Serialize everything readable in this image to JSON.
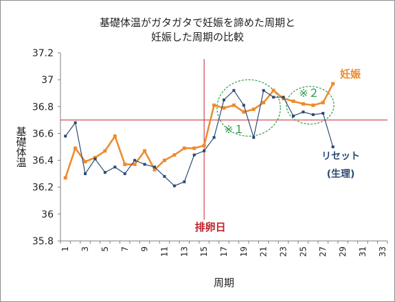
{
  "chart_data": {
    "type": "line",
    "title_line1": "基礎体温がガタガタで妊娠を諦めた周期と",
    "title_line2": "妊娠した周期の比較",
    "xlabel": "周期",
    "ylabel": "基礎体温",
    "xlim": [
      1,
      33
    ],
    "ylim": [
      35.8,
      37.2
    ],
    "y_ticks": [
      "35.8",
      "36",
      "36.2",
      "36.4",
      "36.6",
      "36.8",
      "37",
      "37.2"
    ],
    "x_ticks": [
      "1",
      "3",
      "5",
      "7",
      "9",
      "11",
      "13",
      "15",
      "17",
      "19",
      "21",
      "23",
      "25",
      "27",
      "29",
      "31",
      "33"
    ],
    "grid": false,
    "series": [
      {
        "name": "妊娠",
        "label_lines": [
          "妊娠"
        ],
        "color": "#ed8b2f",
        "x": [
          1,
          2,
          3,
          4,
          5,
          6,
          7,
          8,
          9,
          10,
          11,
          12,
          13,
          14,
          15,
          16,
          17,
          18,
          19,
          20,
          21,
          22,
          23,
          24,
          25,
          26,
          27,
          28
        ],
        "y": [
          36.27,
          36.49,
          36.39,
          36.42,
          36.47,
          36.58,
          36.37,
          36.37,
          36.47,
          36.33,
          36.4,
          36.44,
          36.49,
          36.49,
          36.51,
          36.81,
          36.79,
          36.81,
          36.76,
          36.78,
          36.83,
          36.92,
          36.86,
          36.84,
          36.82,
          36.81,
          36.83,
          36.97
        ]
      },
      {
        "name": "リセット(生理)",
        "label_lines": [
          "リセット",
          "(生理)"
        ],
        "color": "#2c4a73",
        "x": [
          1,
          2,
          3,
          4,
          5,
          6,
          7,
          8,
          9,
          10,
          11,
          12,
          13,
          14,
          15,
          16,
          17,
          18,
          19,
          20,
          21,
          22,
          23,
          24,
          25,
          26,
          27,
          28
        ],
        "y": [
          36.58,
          36.68,
          36.3,
          36.41,
          36.31,
          36.35,
          36.3,
          36.4,
          36.37,
          36.35,
          36.28,
          36.21,
          36.24,
          36.44,
          36.47,
          36.57,
          36.85,
          36.92,
          36.81,
          36.57,
          36.92,
          36.87,
          36.87,
          36.73,
          36.76,
          36.74,
          36.75,
          36.5
        ]
      }
    ],
    "reference_lines": [
      {
        "axis": "x",
        "value": 15,
        "label": "排卵日",
        "color": "#c0232b"
      },
      {
        "axis": "y",
        "value": 36.7,
        "label": "",
        "color": "#c0232b"
      }
    ],
    "annotations": [
      {
        "label": "※１",
        "cx": 19.5,
        "cy": 36.79,
        "rx": 3.2,
        "ry": 0.21,
        "color": "#2f9a48"
      },
      {
        "label": "※２",
        "cx": 25.7,
        "cy": 36.81,
        "rx": 2.4,
        "ry": 0.14,
        "color": "#2f9a48"
      }
    ]
  }
}
